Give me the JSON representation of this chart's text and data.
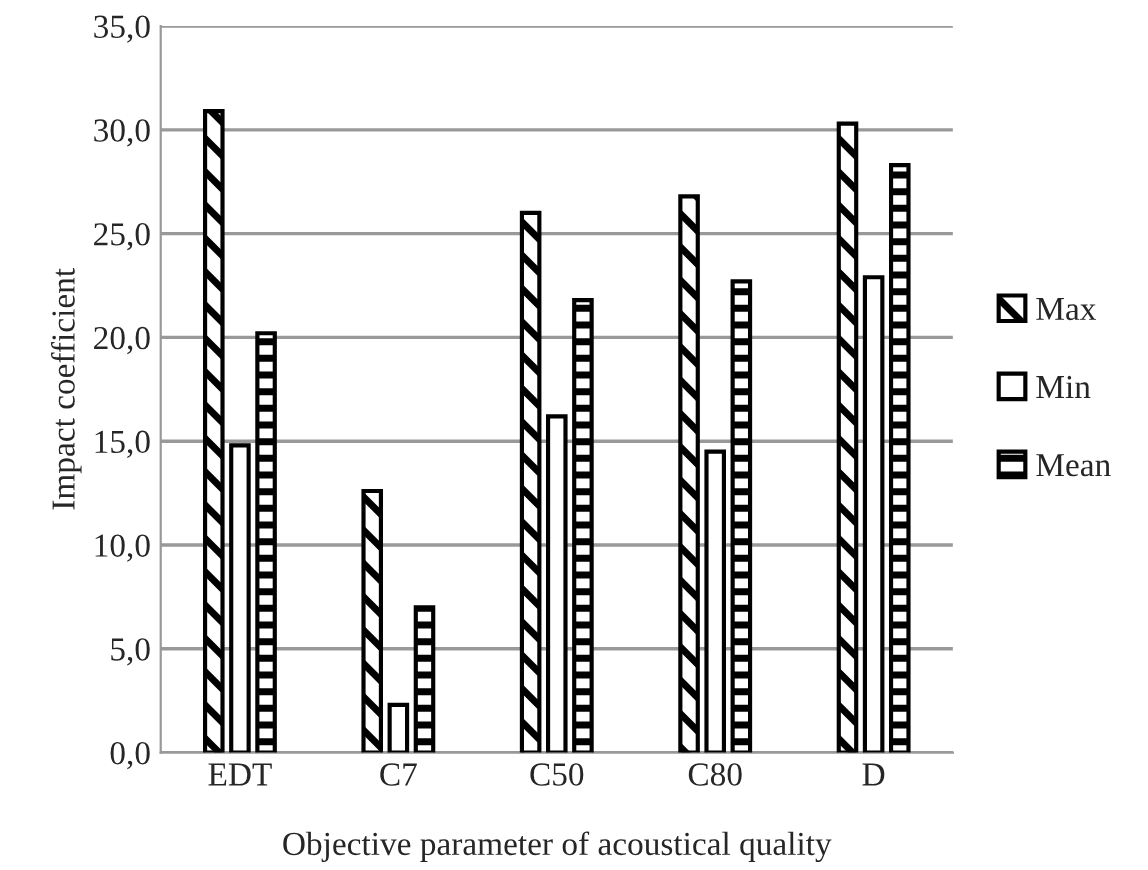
{
  "chart_data": {
    "type": "bar",
    "xlabel": "Objective parameter of acoustical quality",
    "ylabel": "Impact coefficient",
    "categories": [
      "EDT",
      "C7",
      "C50",
      "C80",
      "D"
    ],
    "series": [
      {
        "name": "Max",
        "color": "#000000",
        "values": [
          30.9,
          12.6,
          26.0,
          26.8,
          30.3
        ]
      },
      {
        "name": "Min",
        "color": "#ffffff",
        "values": [
          14.8,
          2.3,
          16.2,
          14.5,
          22.9
        ]
      },
      {
        "name": "Mean",
        "color": "#000000",
        "values": [
          20.2,
          7.0,
          21.8,
          22.7,
          28.3
        ]
      }
    ],
    "ylim": [
      0,
      35
    ],
    "yticks": [
      {
        "value": 0,
        "label": "0,0"
      },
      {
        "value": 5,
        "label": "5,0"
      },
      {
        "value": 10,
        "label": "10,0"
      },
      {
        "value": 15,
        "label": "15,0"
      },
      {
        "value": 20,
        "label": "20,0"
      },
      {
        "value": 25,
        "label": "25,0"
      },
      {
        "value": 30,
        "label": "30,0"
      },
      {
        "value": 35,
        "label": "35,0"
      }
    ],
    "grid": "y",
    "legend": "right"
  }
}
